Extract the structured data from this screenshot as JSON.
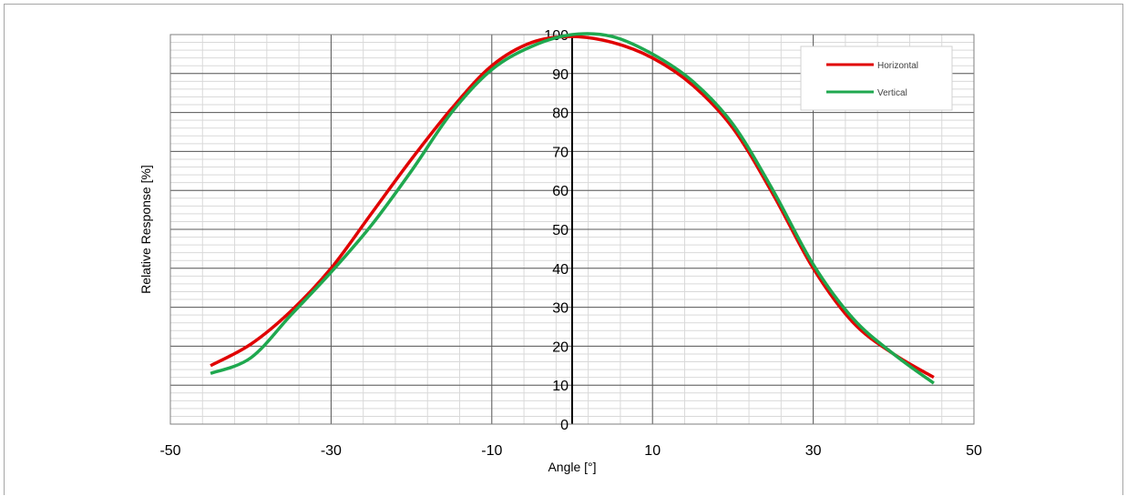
{
  "chart_data": {
    "type": "line",
    "xlabel": "Angle [°]",
    "ylabel": "Relative Response [%]",
    "xlim": [
      -50,
      50
    ],
    "ylim": [
      0,
      100
    ],
    "x_ticks": [
      -50,
      -30,
      -10,
      10,
      30,
      50
    ],
    "y_ticks": [
      0,
      10,
      20,
      30,
      40,
      50,
      60,
      70,
      80,
      90,
      100
    ],
    "grid": true,
    "legend_position": "top-right",
    "series": [
      {
        "name": "Horizontal",
        "color": "#e00000",
        "x": [
          -45,
          -40,
          -35,
          -30,
          -25,
          -20,
          -15,
          -10,
          -5,
          0,
          5,
          10,
          15,
          20,
          25,
          30,
          35,
          40,
          45
        ],
        "y": [
          15,
          20.5,
          29,
          40,
          54,
          68,
          81,
          92,
          98,
          99.5,
          98,
          94,
          87,
          76,
          59,
          40,
          26,
          18,
          12
        ]
      },
      {
        "name": "Vertical",
        "color": "#1fa84f",
        "x": [
          -45,
          -40,
          -35,
          -30,
          -25,
          -20,
          -15,
          -10,
          -5,
          0,
          5,
          10,
          15,
          20,
          25,
          30,
          35,
          40,
          45
        ],
        "y": [
          13,
          17,
          28,
          39,
          51,
          65,
          80,
          91,
          97,
          100,
          99.5,
          95,
          88,
          77,
          60,
          41,
          27,
          18,
          10.5
        ]
      }
    ]
  }
}
